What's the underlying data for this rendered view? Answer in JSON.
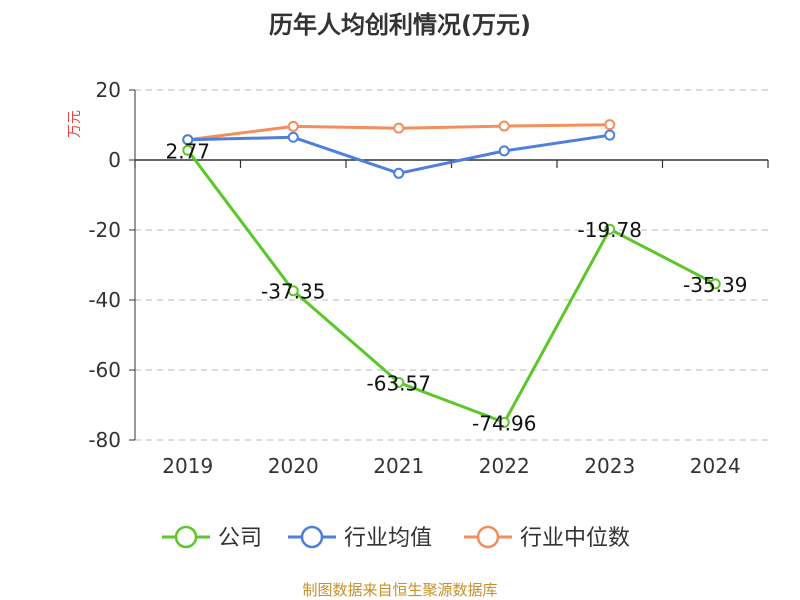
{
  "chart_data": {
    "type": "line",
    "title": "历年人均创利情况(万元)",
    "xlabel": "",
    "ylabel": "万元",
    "categories": [
      "2019",
      "2020",
      "2021",
      "2022",
      "2023",
      "2024"
    ],
    "ylim": [
      -80,
      20
    ],
    "yticks": [
      20,
      0,
      -20,
      -40,
      -60,
      -80
    ],
    "grid": true,
    "legend_position": "bottom",
    "series": [
      {
        "name": "公司",
        "color": "#5bc72a",
        "values": [
          2.77,
          -37.35,
          -63.57,
          -74.96,
          -19.78,
          -35.39
        ],
        "labels": [
          "2.77",
          "-37.35",
          "-63.57",
          "-74.96",
          "-19.78",
          "-35.39"
        ]
      },
      {
        "name": "行业均值",
        "color": "#4d7fdb",
        "values": [
          5.8,
          6.5,
          -3.8,
          2.6,
          7.1,
          null
        ]
      },
      {
        "name": "行业中位数",
        "color": "#f28f5b",
        "values": [
          5.8,
          9.6,
          9.1,
          9.7,
          10.1,
          null
        ]
      }
    ]
  },
  "footer": {
    "source": "制图数据来自恒生聚源数据库"
  }
}
